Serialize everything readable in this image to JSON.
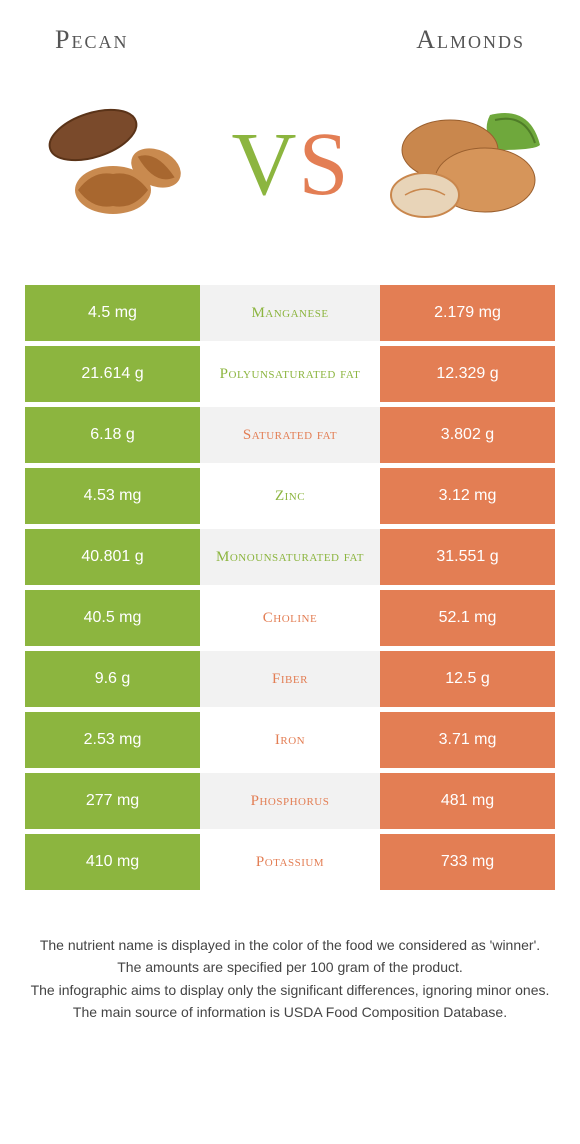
{
  "colors": {
    "left": "#8cb53f",
    "right": "#e37e54",
    "bg_even": "#f2f2f2",
    "bg_odd": "#ffffff",
    "title_text": "#555555",
    "footer_text": "#444444"
  },
  "header": {
    "left_title": "Pecan",
    "right_title": "Almonds",
    "vs_v": "V",
    "vs_s": "S"
  },
  "rows": [
    {
      "nutrient": "Manganese",
      "left": "4.5 mg",
      "right": "2.179 mg",
      "winner": "left"
    },
    {
      "nutrient": "Polyunsaturated fat",
      "left": "21.614 g",
      "right": "12.329 g",
      "winner": "left"
    },
    {
      "nutrient": "Saturated fat",
      "left": "6.18 g",
      "right": "3.802 g",
      "winner": "right"
    },
    {
      "nutrient": "Zinc",
      "left": "4.53 mg",
      "right": "3.12 mg",
      "winner": "left"
    },
    {
      "nutrient": "Monounsaturated fat",
      "left": "40.801 g",
      "right": "31.551 g",
      "winner": "left"
    },
    {
      "nutrient": "Choline",
      "left": "40.5 mg",
      "right": "52.1 mg",
      "winner": "right"
    },
    {
      "nutrient": "Fiber",
      "left": "9.6 g",
      "right": "12.5 g",
      "winner": "right"
    },
    {
      "nutrient": "Iron",
      "left": "2.53 mg",
      "right": "3.71 mg",
      "winner": "right"
    },
    {
      "nutrient": "Phosphorus",
      "left": "277 mg",
      "right": "481 mg",
      "winner": "right"
    },
    {
      "nutrient": "Potassium",
      "left": "410 mg",
      "right": "733 mg",
      "winner": "right"
    }
  ],
  "footer": {
    "line1": "The nutrient name is displayed in the color of the food we considered as 'winner'.",
    "line2": "The amounts are specified per 100 gram of the product.",
    "line3": "The infographic aims to display only the significant differences, ignoring minor ones.",
    "line4": "The main source of information is USDA Food Composition Database."
  }
}
